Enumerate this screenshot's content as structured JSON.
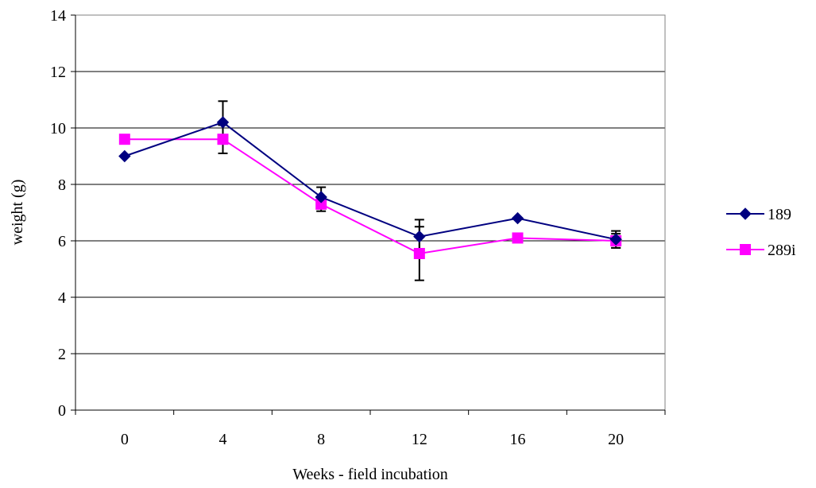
{
  "chart_data": {
    "type": "line",
    "title": "",
    "xlabel": "Weeks - field incubation",
    "ylabel": "weight (g)",
    "categories": [
      "0",
      "4",
      "8",
      "12",
      "16",
      "20"
    ],
    "ylim": [
      0,
      14
    ],
    "yticks": [
      "0",
      "2",
      "4",
      "6",
      "8",
      "10",
      "12",
      "14"
    ],
    "grid": "horizontal",
    "legend_position": "right",
    "series": [
      {
        "name": "189",
        "color": "#000080",
        "marker": "diamond",
        "values": [
          9.0,
          10.2,
          7.55,
          6.15,
          6.8,
          6.05
        ],
        "error": [
          null,
          0.75,
          0.35,
          0.6,
          null,
          0.3
        ]
      },
      {
        "name": "289i",
        "color": "#ff00ff",
        "marker": "square",
        "values": [
          9.6,
          9.6,
          7.3,
          5.55,
          6.1,
          6.0
        ],
        "error": [
          null,
          0.5,
          0.25,
          0.95,
          null,
          0.25
        ]
      }
    ]
  }
}
